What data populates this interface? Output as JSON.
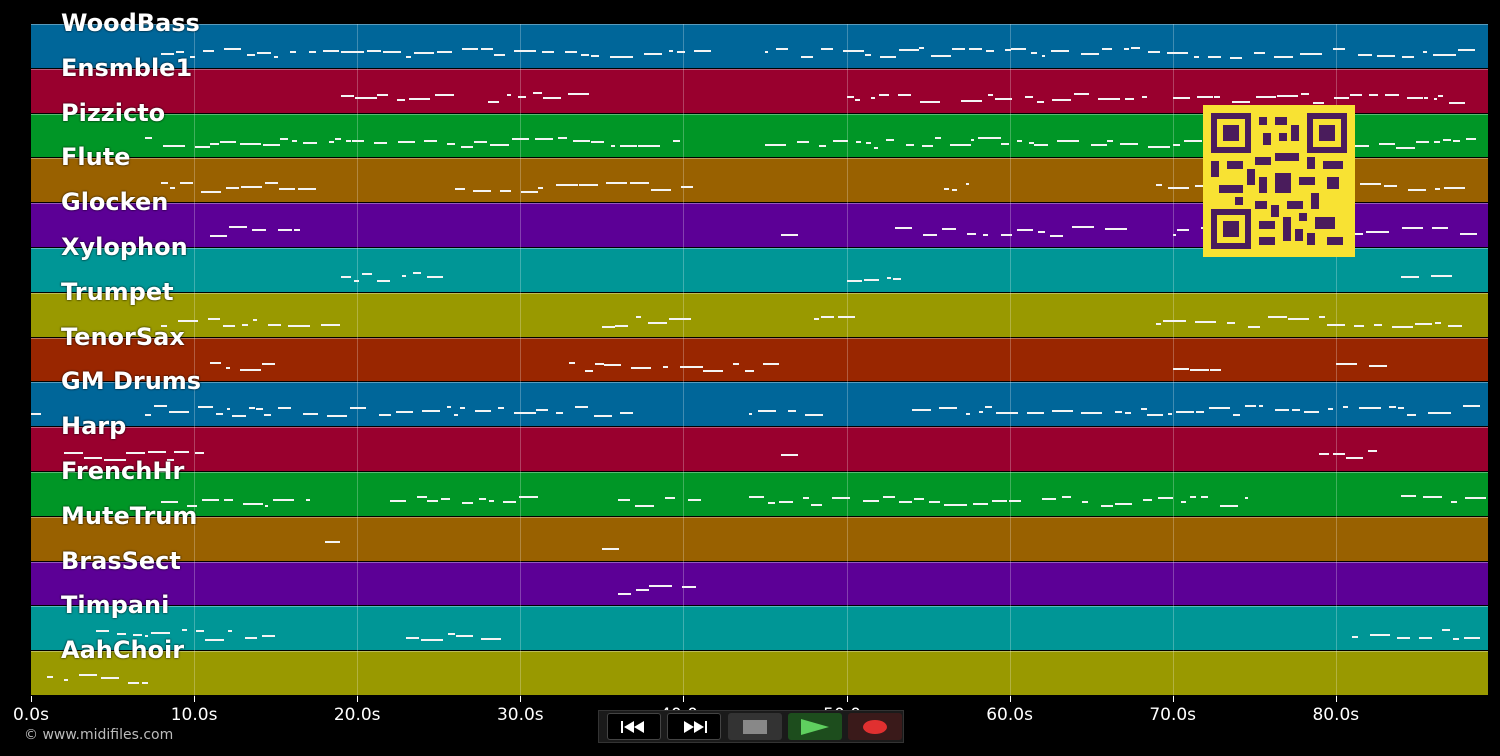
{
  "tracks": [
    {
      "name": "WoodBass",
      "color": "#006699"
    },
    {
      "name": "Ensmble1",
      "color": "#99002e"
    },
    {
      "name": "Pizzicto",
      "color": "#009626"
    },
    {
      "name": "Flute",
      "color": "#996100"
    },
    {
      "name": "Glocken",
      "color": "#5c0096"
    },
    {
      "name": "Xylophon",
      "color": "#009696"
    },
    {
      "name": "Trumpet",
      "color": "#999900"
    },
    {
      "name": "TenorSax",
      "color": "#992600"
    },
    {
      "name": "GM Drums",
      "color": "#006699"
    },
    {
      "name": "Harp",
      "color": "#99002e"
    },
    {
      "name": "FrenchHr",
      "color": "#009626"
    },
    {
      "name": "MuteTrum",
      "color": "#996100"
    },
    {
      "name": "BrasSect",
      "color": "#5c0096"
    },
    {
      "name": "Timpani",
      "color": "#009696"
    },
    {
      "name": "AahChoir",
      "color": "#999900"
    }
  ],
  "timeline": {
    "ticks": [
      "0.0s",
      "10.0s",
      "20.0s",
      "30.0s",
      "40.0s",
      "50.0s",
      "60.0s",
      "70.0s",
      "80.0s"
    ]
  },
  "transport": {
    "buttons": [
      {
        "name": "rewind-button",
        "icon": "rewind-icon"
      },
      {
        "name": "fast-forward-button",
        "icon": "fast-forward-icon"
      },
      {
        "name": "stop-button",
        "icon": "stop-icon"
      },
      {
        "name": "play-button",
        "icon": "play-icon"
      },
      {
        "name": "record-button",
        "icon": "record-icon"
      }
    ]
  },
  "footer": {
    "copyright": "© www.midifiles.com"
  },
  "qr": {
    "icon": "qr-code-icon",
    "color": "#f8e233"
  }
}
